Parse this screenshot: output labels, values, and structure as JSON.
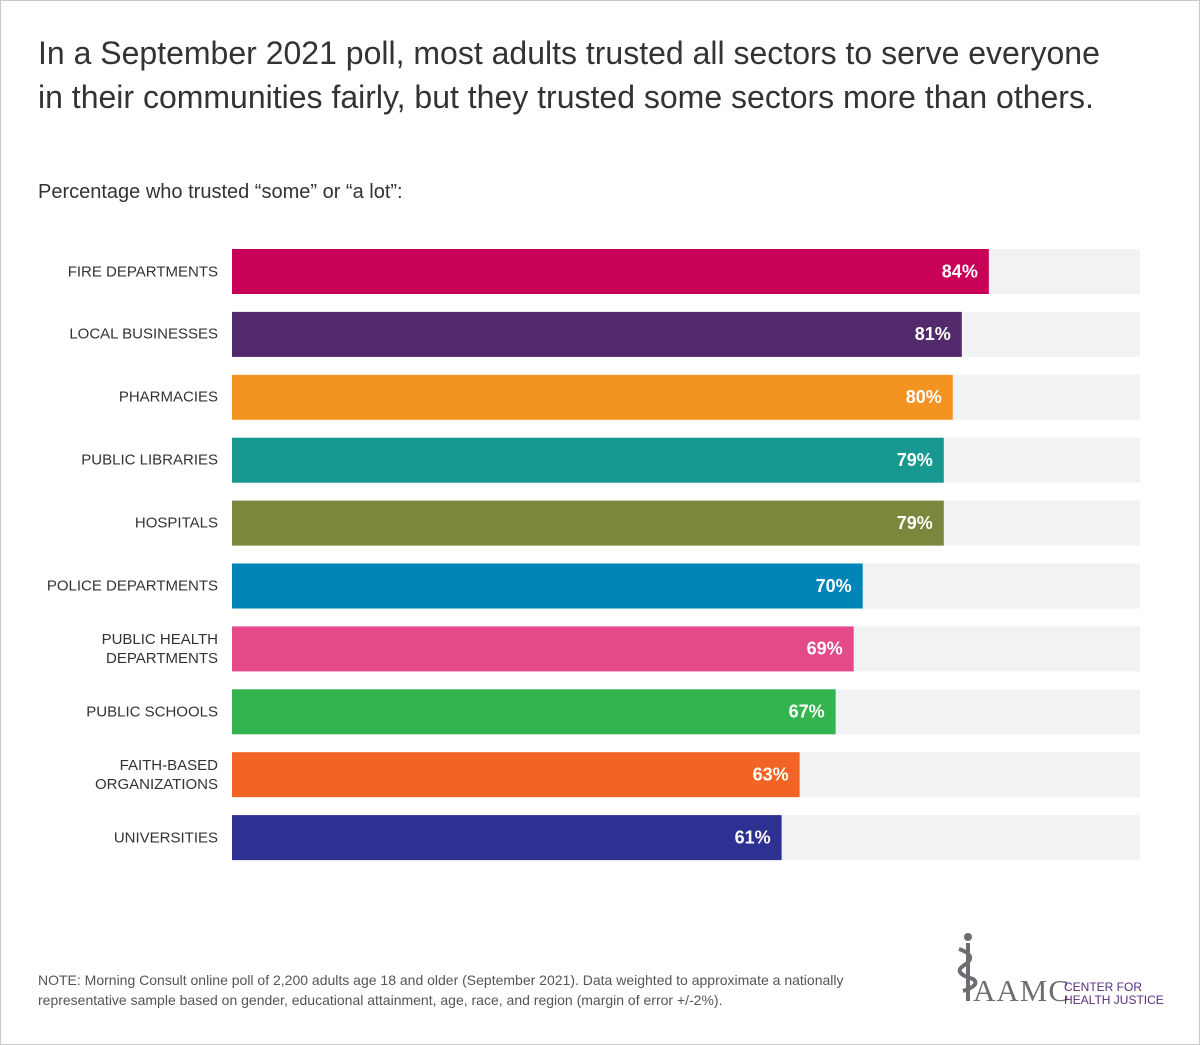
{
  "chart_data": {
    "type": "hbar",
    "title": "In a September 2021 poll, most adults trusted all sectors to serve everyone in their communities fairly, but they trusted some sectors more than others.",
    "subtitle": "Percentage who trusted “some” or “a lot”:",
    "categories": [
      "FIRE DEPARTMENTS",
      "LOCAL BUSINESSES",
      "PHARMACIES",
      "PUBLIC LIBRARIES",
      "HOSPITALS",
      "POLICE DEPARTMENTS",
      "PUBLIC HEALTH\nDEPARTMENTS",
      "PUBLIC SCHOOLS",
      "FAITH-BASED\nORGANIZATIONS",
      "UNIVERSITIES"
    ],
    "values": [
      84,
      81,
      80,
      79,
      79,
      70,
      69,
      67,
      63,
      61
    ],
    "value_labels": [
      "84%",
      "81%",
      "80%",
      "79%",
      "79%",
      "70%",
      "69%",
      "67%",
      "63%",
      "61%"
    ],
    "colors": [
      "#c80057",
      "#532a6b",
      "#f39322",
      "#179891",
      "#7b873c",
      "#0184b8",
      "#e34a87",
      "#33b44f",
      "#f26424",
      "#2e3192"
    ],
    "xlim": [
      0,
      100
    ],
    "note": "NOTE: Morning Consult online poll of 2,200 adults age 18 and older (September 2021). Data weighted to approximate a nationally representative sample based on gender, educational attainment, age, race, and region (margin of error +/-2%).",
    "logo": {
      "name": "AAMC",
      "tagline": "CENTER FOR\nHEALTH JUSTICE"
    }
  }
}
